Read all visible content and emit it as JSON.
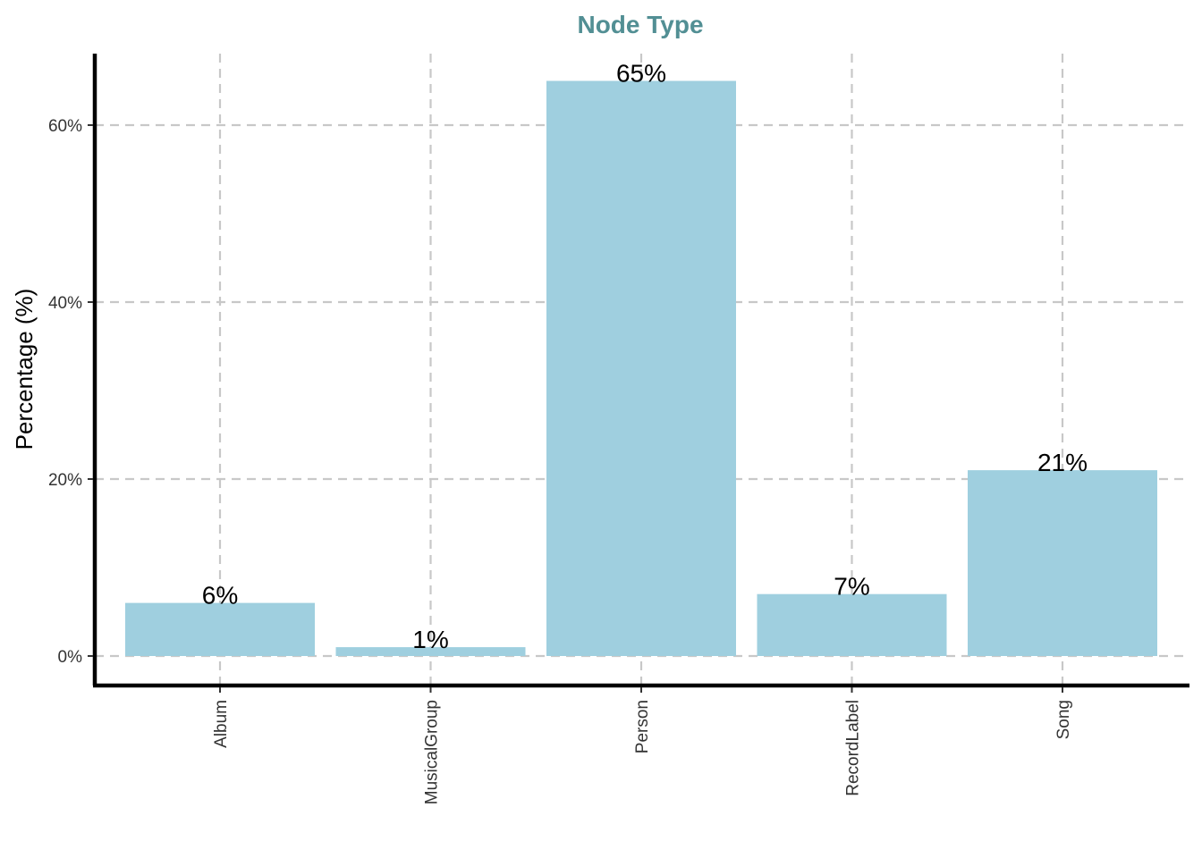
{
  "chart_data": {
    "type": "bar",
    "title": "Node Type",
    "xlabel": "",
    "ylabel": "Percentage (%)",
    "categories": [
      "Album",
      "MusicalGroup",
      "Person",
      "RecordLabel",
      "Song"
    ],
    "values": [
      6,
      1,
      65,
      7,
      21
    ],
    "data_labels": [
      "6%",
      "1%",
      "65%",
      "7%",
      "21%"
    ],
    "yticks": [
      0,
      20,
      40,
      60
    ],
    "ytick_labels": [
      "0%",
      "20%",
      "40%",
      "60%"
    ],
    "ylim": [
      -3.3,
      68.3
    ],
    "grid": true,
    "legend": "none",
    "colors": {
      "bar": "#9fcfdf",
      "title": "#528f94",
      "grid": "#c8c8c8"
    }
  }
}
